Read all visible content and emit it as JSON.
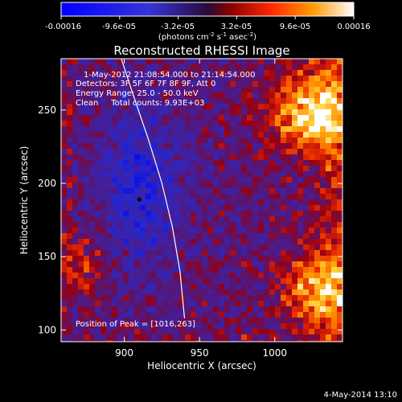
{
  "chart_data": {
    "type": "heatmap",
    "title": "Reconstructed RHESSI Image",
    "xlabel": "Heliocentric X (arcsec)",
    "ylabel": "Heliocentric Y (arcsec)",
    "xlim": [
      858,
      1045
    ],
    "ylim": [
      92,
      285
    ],
    "xticks": [
      900,
      950,
      1000
    ],
    "yticks": [
      100,
      150,
      200,
      250
    ],
    "colorbar": {
      "min": -0.00016,
      "max": 0.00016,
      "tick_labels": [
        "-0.00016",
        "-9.6e-05",
        "-3.2e-05",
        "3.2e-05",
        "9.6e-05",
        "0.00016"
      ],
      "unit_label": "(photons cm",
      "unit_exp1": "-2",
      "unit_mid": " s",
      "unit_exp2": "-1",
      "unit_end": " asec",
      "unit_exp3": "-2",
      "unit_close": ")"
    },
    "annotations": {
      "time_range": "1-May-2012 21:08:54.000 to 21:14:54.000",
      "detectors": "Detectors: 3F 5F 6F 7F 8F 9F, Att 0",
      "energy_range": "Energy Range: 25.0 - 50.0 keV",
      "clean_counts": "Clean     Total counts: 9.93E+03",
      "peak_position": "Position of Peak = [1016,263]"
    },
    "limb": [
      [
        940,
        108
      ],
      [
        937,
        140
      ],
      [
        932,
        170
      ],
      [
        925,
        200
      ],
      [
        916,
        230
      ],
      [
        906,
        260
      ],
      [
        898,
        285
      ]
    ],
    "marker": [
      910,
      189
    ]
  },
  "footer": {
    "date": "4-May-2014 13:10"
  },
  "colors": {
    "background": "#000000",
    "text": "#ffffff"
  }
}
